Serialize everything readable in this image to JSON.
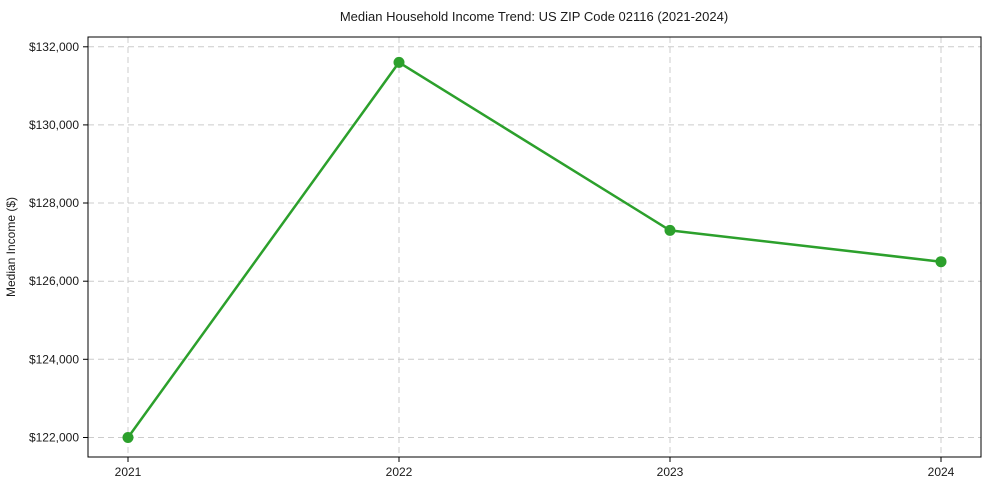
{
  "chart_data": {
    "type": "line",
    "title": "Median Household Income Trend: US ZIP Code 02116 (2021-2024)",
    "xlabel": "",
    "ylabel": "Median Income ($)",
    "categories": [
      "2021",
      "2022",
      "2023",
      "2024"
    ],
    "series": [
      {
        "name": "Median household income",
        "values": [
          122000,
          131600,
          127300,
          126500
        ]
      }
    ],
    "ylim": [
      121500,
      132250
    ],
    "yticks": [
      122000,
      124000,
      126000,
      128000,
      130000,
      132000
    ],
    "ytick_labels": [
      "$122,000",
      "$124,000",
      "$126,000",
      "$128,000",
      "$130,000",
      "$132,000"
    ],
    "grid": true,
    "legend": false,
    "line_color": "#2ca02c",
    "marker": "circle",
    "background_color": "#ffffff",
    "grid_color": "#cccccc",
    "spine_color": "#000000"
  }
}
